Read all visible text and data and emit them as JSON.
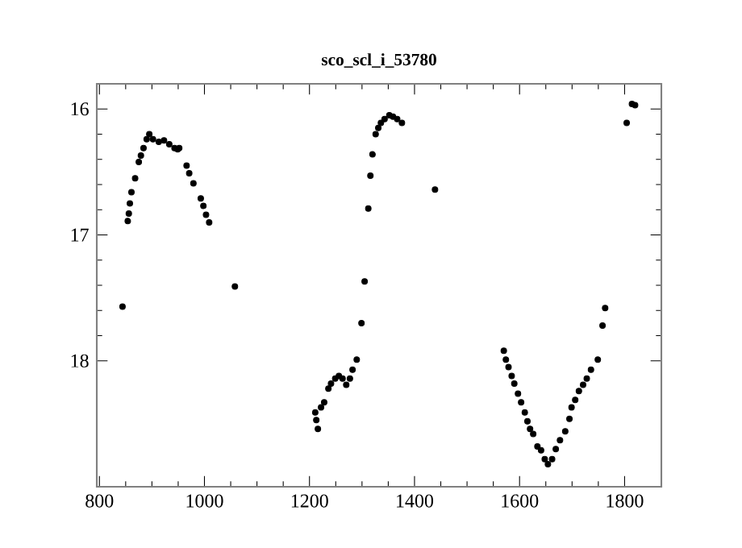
{
  "chart_data": {
    "type": "scatter",
    "title": "sco_scl_i_53780",
    "marker": "circle",
    "grid": false,
    "xlim": [
      795,
      1870
    ],
    "xticks": [
      800,
      1000,
      1200,
      1400,
      1600,
      1800
    ],
    "ylim": [
      19,
      15.8
    ],
    "yticks": [
      16,
      17,
      18
    ],
    "series": [
      {
        "color": "#000000",
        "x": [
          844,
          854,
          856,
          858,
          861,
          868,
          875,
          879,
          884,
          890,
          895,
          902,
          913,
          923,
          933,
          943,
          949,
          952,
          966,
          971,
          979,
          993,
          998,
          1003,
          1009,
          1058,
          1211,
          1213,
          1216,
          1222,
          1228,
          1236,
          1241,
          1249,
          1256,
          1263,
          1270,
          1277,
          1282,
          1290,
          1299,
          1305,
          1312,
          1316,
          1320,
          1326,
          1331,
          1336,
          1343,
          1352,
          1359,
          1367,
          1376,
          1439,
          1570,
          1574,
          1579,
          1585,
          1590,
          1597,
          1603,
          1610,
          1615,
          1620,
          1626,
          1634,
          1641,
          1648,
          1654,
          1662,
          1669,
          1677,
          1687,
          1695,
          1699,
          1706,
          1713,
          1721,
          1728,
          1736,
          1749,
          1758,
          1763,
          1804,
          1814,
          1820
        ],
        "values": [
          17.57,
          16.89,
          16.83,
          16.75,
          16.66,
          16.55,
          16.42,
          16.37,
          16.31,
          16.24,
          16.2,
          16.24,
          16.26,
          16.25,
          16.28,
          16.31,
          16.32,
          16.31,
          16.45,
          16.51,
          16.59,
          16.71,
          16.77,
          16.84,
          16.9,
          17.41,
          18.41,
          18.47,
          18.54,
          18.37,
          18.33,
          18.22,
          18.18,
          18.14,
          18.12,
          18.14,
          18.19,
          18.14,
          18.07,
          17.99,
          17.7,
          17.37,
          16.79,
          16.53,
          16.36,
          16.2,
          16.15,
          16.11,
          16.08,
          16.05,
          16.06,
          16.08,
          16.11,
          16.64,
          17.92,
          17.99,
          18.05,
          18.12,
          18.18,
          18.26,
          18.33,
          18.41,
          18.48,
          18.54,
          18.58,
          18.68,
          18.71,
          18.78,
          18.82,
          18.78,
          18.7,
          18.63,
          18.56,
          18.46,
          18.37,
          18.31,
          18.24,
          18.19,
          18.14,
          18.07,
          17.99,
          17.72,
          17.58,
          16.11,
          15.96,
          15.97
        ]
      }
    ]
  }
}
